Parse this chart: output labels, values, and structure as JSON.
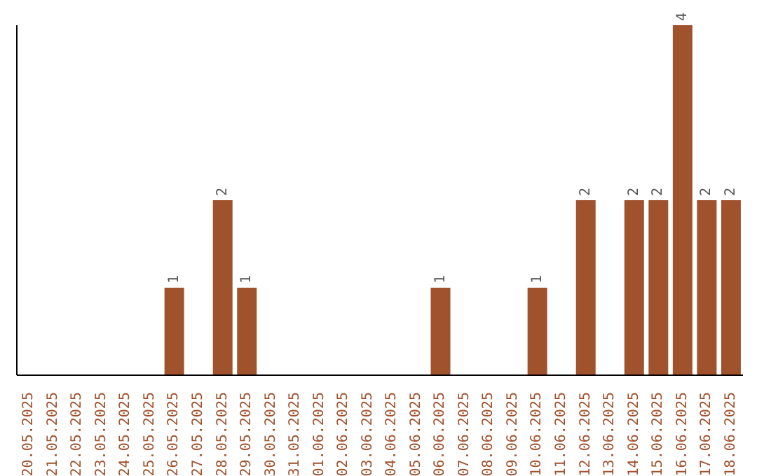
{
  "chart_data": {
    "type": "bar",
    "categories": [
      "20.05.2025",
      "21.05.2025",
      "22.05.2025",
      "23.05.2025",
      "24.05.2025",
      "25.05.2025",
      "26.05.2025",
      "27.05.2025",
      "28.05.2025",
      "29.05.2025",
      "30.05.2025",
      "31.05.2025",
      "01.06.2025",
      "02.06.2025",
      "03.06.2025",
      "04.06.2025",
      "05.06.2025",
      "06.06.2025",
      "07.06.2025",
      "08.06.2025",
      "09.06.2025",
      "10.06.2025",
      "11.06.2025",
      "12.06.2025",
      "13.06.2025",
      "14.06.2025",
      "15.06.2025",
      "16.06.2025",
      "17.06.2025",
      "18.06.2025"
    ],
    "values": [
      0,
      0,
      0,
      0,
      0,
      0,
      1,
      0,
      2,
      1,
      0,
      0,
      0,
      0,
      0,
      0,
      0,
      1,
      0,
      0,
      0,
      1,
      0,
      2,
      0,
      2,
      2,
      4,
      2,
      2
    ],
    "value_labels": [
      null,
      null,
      null,
      null,
      null,
      null,
      "1",
      null,
      "2",
      "1",
      null,
      null,
      null,
      null,
      null,
      null,
      null,
      "1",
      null,
      null,
      null,
      "1",
      null,
      "2",
      null,
      "2",
      "2",
      "4",
      "2",
      "2"
    ],
    "color": "#a0522d",
    "grid": false,
    "legend": false
  }
}
